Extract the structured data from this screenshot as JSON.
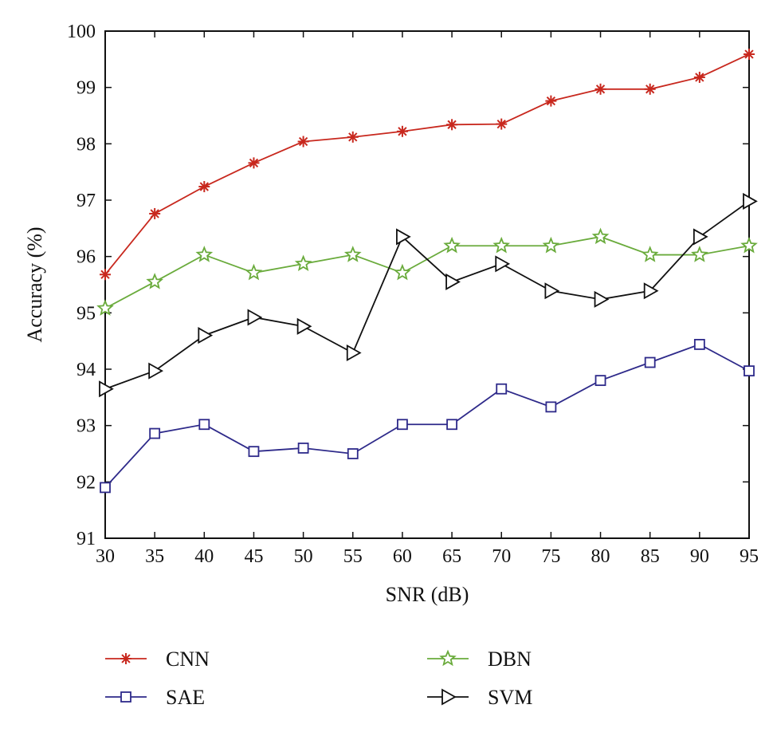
{
  "chart_data": {
    "type": "line",
    "title": "",
    "xlabel": "SNR (dB)",
    "ylabel": "Accuracy (%)",
    "x": [
      30,
      35,
      40,
      45,
      50,
      55,
      60,
      65,
      70,
      75,
      80,
      85,
      90,
      95
    ],
    "xlim": [
      30,
      95
    ],
    "ylim": [
      91,
      100
    ],
    "xticks": [
      "30",
      "35",
      "40",
      "45",
      "50",
      "55",
      "60",
      "65",
      "70",
      "75",
      "80",
      "85",
      "90",
      "95"
    ],
    "yticks": [
      "91",
      "92",
      "93",
      "94",
      "95",
      "96",
      "97",
      "98",
      "99",
      "100"
    ],
    "grid": false,
    "legend_position": "below",
    "series": [
      {
        "name": "CNN",
        "color": "#c8281e",
        "marker": "asterisk",
        "values": [
          95.68,
          96.76,
          97.24,
          97.66,
          98.04,
          98.12,
          98.22,
          98.34,
          98.35,
          98.76,
          98.97,
          98.97,
          99.18,
          99.59
        ]
      },
      {
        "name": "SAE",
        "color": "#2e2a8a",
        "marker": "square",
        "values": [
          91.9,
          92.86,
          93.02,
          92.54,
          92.6,
          92.5,
          93.02,
          93.02,
          93.65,
          93.33,
          93.8,
          94.12,
          94.44,
          93.97
        ]
      },
      {
        "name": "DBN",
        "color": "#6aab3c",
        "marker": "star",
        "values": [
          95.08,
          95.55,
          96.03,
          95.71,
          95.87,
          96.03,
          95.71,
          96.19,
          96.19,
          96.19,
          96.35,
          96.03,
          96.03,
          96.19
        ]
      },
      {
        "name": "SVM",
        "color": "#111111",
        "marker": "triangle-right",
        "values": [
          93.65,
          93.97,
          94.6,
          94.92,
          94.76,
          94.29,
          96.35,
          95.55,
          95.87,
          95.39,
          95.24,
          95.39,
          96.35,
          96.98
        ]
      }
    ]
  }
}
